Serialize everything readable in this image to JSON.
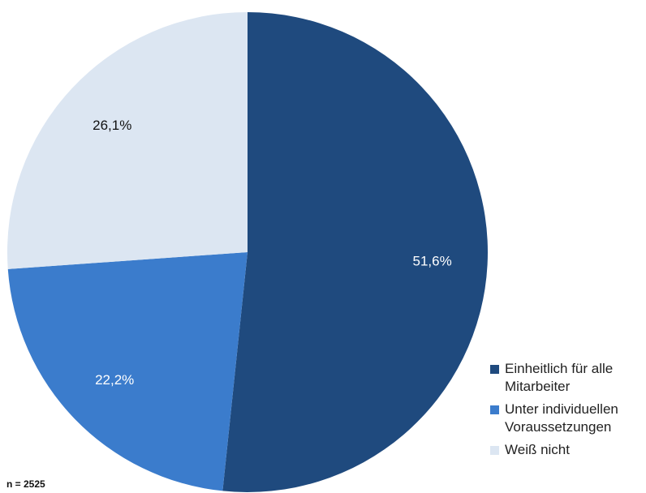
{
  "chart_data": {
    "type": "pie",
    "categories": [
      "Einheitlich für alle Mitarbeiter",
      "Unter individuellen Voraussetzungen",
      "Weiß nicht"
    ],
    "values": [
      51.6,
      22.2,
      26.1
    ],
    "value_labels": [
      "51,6%",
      "22,2%",
      "26,1%"
    ],
    "colors": [
      "#1f4a7e",
      "#3b7ccc",
      "#dce6f2"
    ],
    "label_colors": [
      "#ffffff",
      "#ffffff",
      "#111111"
    ],
    "start_angle_deg": 0,
    "direction": "clockwise",
    "legend_position": "bottom-right",
    "title": "",
    "note": "n = 2525"
  }
}
